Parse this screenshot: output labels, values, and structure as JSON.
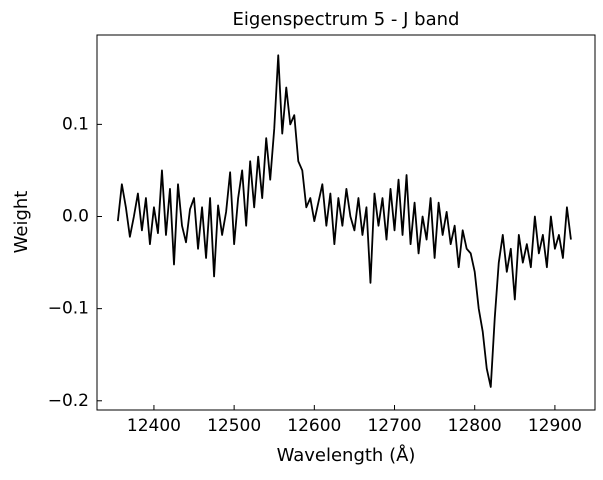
{
  "chart_data": {
    "type": "line",
    "title": "Eigenspectrum 5 - J band",
    "xlabel": "Wavelength (Å)",
    "ylabel": "Weight",
    "color": "#000000",
    "xlim": [
      12329,
      12950
    ],
    "ylim": [
      -0.21,
      0.197
    ],
    "xticks": [
      12400,
      12500,
      12600,
      12700,
      12800,
      12900
    ],
    "yticks": [
      {
        "value": 0.1,
        "label": "0.1"
      },
      {
        "value": 0.0,
        "label": "0.0"
      },
      {
        "value": -0.1,
        "label": "−0.1"
      },
      {
        "value": -0.2,
        "label": "−0.2"
      }
    ],
    "x": [
      12355,
      12360,
      12365,
      12370,
      12375,
      12380,
      12385,
      12390,
      12395,
      12400,
      12405,
      12410,
      12415,
      12420,
      12425,
      12430,
      12435,
      12440,
      12445,
      12450,
      12455,
      12460,
      12465,
      12470,
      12475,
      12480,
      12485,
      12490,
      12495,
      12500,
      12505,
      12510,
      12515,
      12520,
      12525,
      12530,
      12535,
      12540,
      12545,
      12550,
      12555,
      12560,
      12565,
      12570,
      12575,
      12580,
      12585,
      12590,
      12595,
      12600,
      12605,
      12610,
      12615,
      12620,
      12625,
      12630,
      12635,
      12640,
      12645,
      12650,
      12655,
      12660,
      12665,
      12670,
      12675,
      12680,
      12685,
      12690,
      12695,
      12700,
      12705,
      12710,
      12715,
      12720,
      12725,
      12730,
      12735,
      12740,
      12745,
      12750,
      12755,
      12760,
      12765,
      12770,
      12775,
      12780,
      12785,
      12790,
      12795,
      12800,
      12805,
      12810,
      12815,
      12820,
      12825,
      12830,
      12835,
      12840,
      12845,
      12850,
      12855,
      12860,
      12865,
      12870,
      12875,
      12880,
      12885,
      12890,
      12895,
      12900,
      12905,
      12910,
      12915,
      12920
    ],
    "values": [
      -0.005,
      0.035,
      0.01,
      -0.022,
      0.0,
      0.025,
      -0.015,
      0.02,
      -0.03,
      0.01,
      -0.018,
      0.05,
      -0.02,
      0.03,
      -0.052,
      0.035,
      -0.01,
      -0.028,
      0.008,
      0.02,
      -0.035,
      0.01,
      -0.045,
      0.02,
      -0.065,
      0.012,
      -0.02,
      0.005,
      0.048,
      -0.03,
      0.02,
      0.05,
      -0.01,
      0.06,
      0.01,
      0.065,
      0.02,
      0.085,
      0.04,
      0.095,
      0.175,
      0.09,
      0.14,
      0.1,
      0.11,
      0.06,
      0.05,
      0.01,
      0.02,
      -0.005,
      0.015,
      0.035,
      -0.01,
      0.025,
      -0.03,
      0.02,
      -0.01,
      0.03,
      0.0,
      -0.015,
      0.02,
      -0.02,
      0.01,
      -0.072,
      0.025,
      -0.01,
      0.02,
      -0.025,
      0.03,
      -0.015,
      0.04,
      -0.02,
      0.045,
      -0.03,
      0.015,
      -0.04,
      0.0,
      -0.025,
      0.02,
      -0.045,
      0.015,
      -0.02,
      0.005,
      -0.03,
      -0.01,
      -0.055,
      -0.015,
      -0.035,
      -0.04,
      -0.06,
      -0.1,
      -0.125,
      -0.165,
      -0.185,
      -0.11,
      -0.05,
      -0.02,
      -0.06,
      -0.035,
      -0.09,
      -0.02,
      -0.05,
      -0.03,
      -0.055,
      0.0,
      -0.04,
      -0.02,
      -0.055,
      0.0,
      -0.035,
      -0.02,
      -0.045,
      0.01,
      -0.025
    ]
  }
}
